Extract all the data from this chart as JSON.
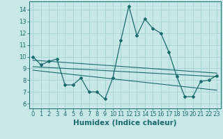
{
  "title": "",
  "xlabel": "Humidex (Indice chaleur)",
  "bg_color": "#c8e8e8",
  "line_color": "#1a6b6b",
  "xlim": [
    -0.5,
    23.5
  ],
  "ylim": [
    5.6,
    14.7
  ],
  "yticks": [
    6,
    7,
    8,
    9,
    10,
    11,
    12,
    13,
    14
  ],
  "xticks": [
    0,
    1,
    2,
    3,
    4,
    5,
    6,
    7,
    8,
    9,
    10,
    11,
    12,
    13,
    14,
    15,
    16,
    17,
    18,
    19,
    20,
    21,
    22,
    23
  ],
  "main_line_x": [
    0,
    1,
    2,
    3,
    4,
    5,
    6,
    7,
    8,
    9,
    10,
    11,
    12,
    13,
    14,
    15,
    16,
    17,
    18,
    19,
    20,
    21,
    22,
    23
  ],
  "main_line_y": [
    10.0,
    9.3,
    9.6,
    9.8,
    7.6,
    7.6,
    8.2,
    7.0,
    7.0,
    6.4,
    8.2,
    11.4,
    14.3,
    11.8,
    13.2,
    12.4,
    12.0,
    10.4,
    8.3,
    6.6,
    6.6,
    7.9,
    8.0,
    8.4
  ],
  "reg_line1_x": [
    0,
    23
  ],
  "reg_line1_y": [
    9.7,
    8.6
  ],
  "reg_line2_x": [
    0,
    23
  ],
  "reg_line2_y": [
    9.15,
    8.3
  ],
  "reg_line3_x": [
    0,
    23
  ],
  "reg_line3_y": [
    8.85,
    7.15
  ],
  "grid_color": "#a8d4d4",
  "tick_fontsize": 6,
  "label_fontsize": 7.5
}
